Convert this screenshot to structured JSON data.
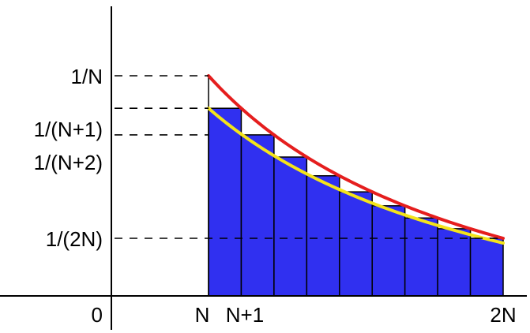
{
  "chart_data": {
    "type": "bar",
    "n_bars": 9,
    "bar_heights": [
      "1/(N+1)",
      "1/(N+2)",
      "…",
      "1/(2N)"
    ],
    "curves": [
      {
        "label": "1/x",
        "color": "#e51e1e"
      },
      {
        "label": "1/(x+1)",
        "color": "#f4e419"
      }
    ],
    "colors": {
      "bar_fill": "#3030f0",
      "bar_stroke": "#000000",
      "axis": "#000000"
    },
    "y_tick_labels": [
      "1/N",
      "1/(N+1)",
      "1/(N+2)",
      "1/(2N)"
    ],
    "x_tick_labels": {
      "n": "N",
      "n_plus_1": "N+1",
      "two_n": "2N"
    },
    "origin_label": "0",
    "grid": false,
    "dashed_guides": true
  }
}
